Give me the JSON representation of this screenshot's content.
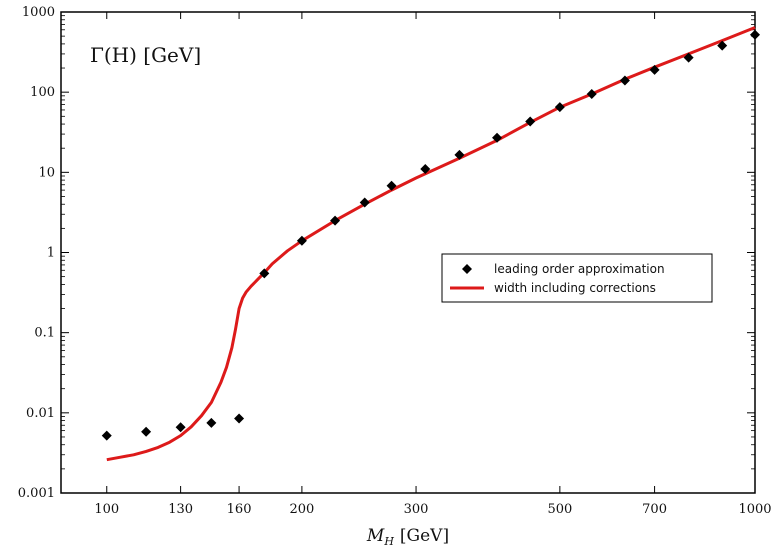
{
  "chart_data": {
    "type": "line",
    "title": "",
    "annotation": "Γ(H) [GeV]",
    "xlabel": "M_H [GeV]",
    "xlabel_main": "M",
    "xlabel_sub": "H",
    "xlabel_unit": "[GeV]",
    "ylabel": "",
    "xscale": "log",
    "yscale": "log",
    "xlim": [
      85,
      1000
    ],
    "ylim": [
      0.001,
      1000
    ],
    "x_ticks": [
      100,
      130,
      160,
      200,
      300,
      500,
      700,
      1000
    ],
    "x_tick_labels": [
      "100",
      "130",
      "160",
      "200",
      "300",
      "500",
      "700",
      "1000"
    ],
    "y_ticks": [
      0.001,
      0.01,
      0.1,
      1,
      10,
      100,
      1000
    ],
    "y_tick_labels": [
      "0.001",
      "0.01",
      "0.1",
      "1",
      "10",
      "100",
      "1000"
    ],
    "legend_position": "center-right",
    "series": [
      {
        "name": "leading order approximation",
        "kind": "scatter",
        "marker": "diamond",
        "color": "#000000",
        "x": [
          100,
          115,
          130,
          145,
          160,
          175,
          200,
          225,
          250,
          275,
          310,
          350,
          400,
          450,
          500,
          560,
          630,
          700,
          790,
          890,
          1000
        ],
        "y": [
          0.0052,
          0.0058,
          0.0066,
          0.0075,
          0.0085,
          0.55,
          1.4,
          2.5,
          4.2,
          6.8,
          11,
          16.5,
          27,
          43,
          65,
          95,
          140,
          190,
          270,
          380,
          520
        ]
      },
      {
        "name": "width including corrections",
        "kind": "line",
        "color": "#dd1a1a",
        "x": [
          100,
          105,
          110,
          115,
          120,
          125,
          130,
          135,
          140,
          145,
          150,
          153,
          156,
          158,
          160,
          162,
          164,
          167,
          170,
          175,
          180,
          190,
          200,
          225,
          250,
          275,
          300,
          350,
          400,
          450,
          500,
          560,
          630,
          700,
          790,
          890,
          1000
        ],
        "y": [
          0.0026,
          0.0028,
          0.003,
          0.0033,
          0.0037,
          0.0043,
          0.0052,
          0.0067,
          0.0092,
          0.0135,
          0.024,
          0.037,
          0.065,
          0.11,
          0.2,
          0.27,
          0.32,
          0.38,
          0.44,
          0.56,
          0.72,
          1.05,
          1.4,
          2.5,
          4.0,
          6.0,
          8.5,
          15,
          25,
          42,
          65,
          95,
          145,
          205,
          300,
          440,
          640
        ]
      }
    ]
  }
}
